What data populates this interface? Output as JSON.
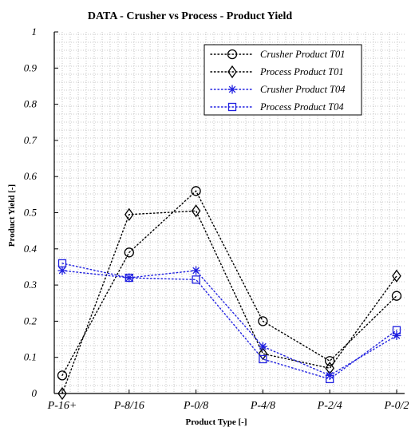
{
  "chart_data": {
    "type": "line",
    "title": "DATA - Crusher vs Process - Product Yield",
    "xlabel": "Product Type [-]",
    "ylabel": "Product Yield [-]",
    "categories": [
      "P-16+",
      "P-8/16",
      "P-0/8",
      "P-4/8",
      "P-2/4",
      "P-0/2"
    ],
    "ylim": [
      0,
      1
    ],
    "yticks": [
      "0",
      "0.1",
      "0.2",
      "0.3",
      "0.4",
      "0.5",
      "0.6",
      "0.7",
      "0.8",
      "0.9",
      "1"
    ],
    "grid": true,
    "legend_position": "top-right",
    "series": [
      {
        "name": "Crusher Product T01",
        "values": [
          0.05,
          0.39,
          0.56,
          0.2,
          0.09,
          0.27
        ],
        "color": "#000000",
        "marker": "circle"
      },
      {
        "name": "Process Product T01",
        "values": [
          0.0,
          0.495,
          0.505,
          0.11,
          0.07,
          0.325
        ],
        "color": "#000000",
        "marker": "diamond"
      },
      {
        "name": "Crusher Product T04",
        "values": [
          0.34,
          0.32,
          0.34,
          0.13,
          0.05,
          0.16
        ],
        "color": "#1f1fe0",
        "marker": "star"
      },
      {
        "name": "Process Product T04",
        "values": [
          0.36,
          0.32,
          0.315,
          0.095,
          0.04,
          0.175
        ],
        "color": "#1f1fe0",
        "marker": "square"
      }
    ]
  }
}
